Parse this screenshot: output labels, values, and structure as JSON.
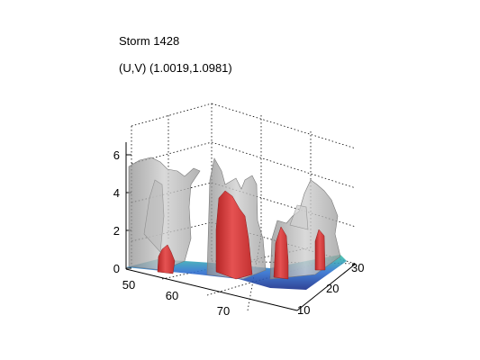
{
  "chart_data": {
    "type": "3d-isosurface",
    "title_lines": [
      "Storm 1428",
      "(U,V) (1.0019,1.0981)"
    ],
    "xlabel": "",
    "ylabel": "",
    "zlabel": "",
    "x_ticks": [
      50,
      60,
      70
    ],
    "y_ticks": [
      10,
      20,
      30
    ],
    "z_ticks": [
      0,
      2,
      4,
      6
    ],
    "xlim": [
      50,
      78
    ],
    "ylim": [
      8,
      33
    ],
    "zlim": [
      0,
      7
    ],
    "grid": true,
    "surfaces": [
      {
        "color": "#a8a8a8",
        "role": "outer-isosurface"
      },
      {
        "color": "#d63a3a",
        "role": "inner-core-isosurface"
      },
      {
        "color": "#2c63c8",
        "role": "base-layer"
      }
    ]
  }
}
